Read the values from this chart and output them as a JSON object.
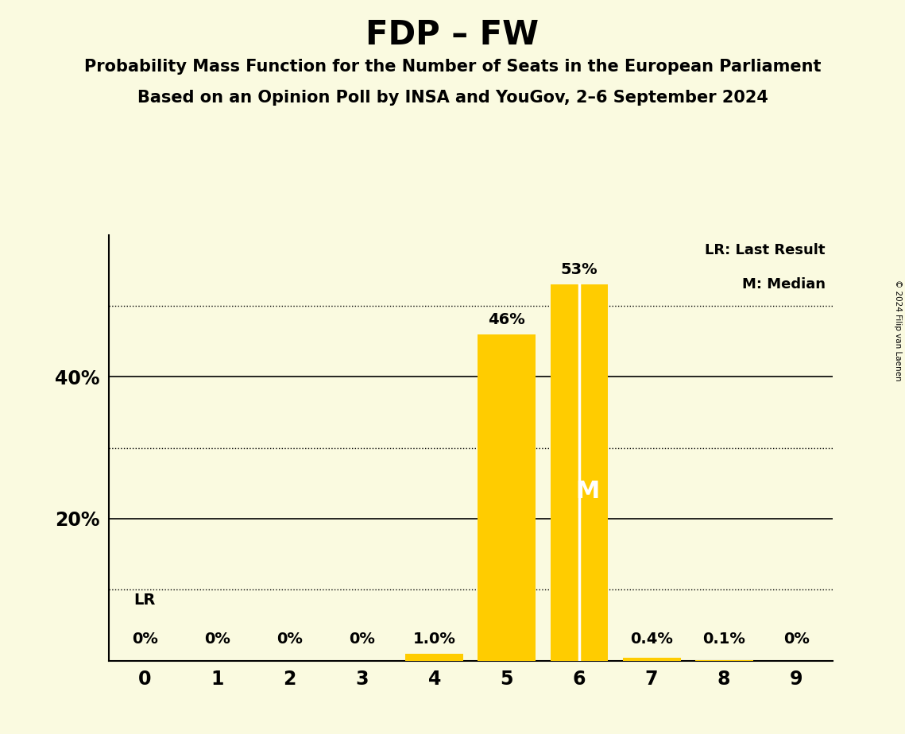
{
  "title": "FDP – FW",
  "subtitle1": "Probability Mass Function for the Number of Seats in the European Parliament",
  "subtitle2": "Based on an Opinion Poll by INSA and YouGov, 2–6 September 2024",
  "copyright": "© 2024 Filip van Laenen",
  "categories": [
    0,
    1,
    2,
    3,
    4,
    5,
    6,
    7,
    8,
    9
  ],
  "values": [
    0.0,
    0.0,
    0.0,
    0.0,
    1.0,
    46.0,
    53.0,
    0.4,
    0.1,
    0.0
  ],
  "bar_color": "#FFCC00",
  "background_color": "#FAFAE0",
  "labels": [
    "0%",
    "0%",
    "0%",
    "0%",
    "1.0%",
    "46%",
    "53%",
    "0.4%",
    "0.1%",
    "0%"
  ],
  "median_seat": 6,
  "lr_seat": 0,
  "ylim": [
    0,
    60
  ],
  "legend_lr": "LR: Last Result",
  "legend_m": "M: Median",
  "dotted_lines": [
    10,
    30,
    50
  ],
  "solid_lines": [
    20,
    40
  ],
  "title_fontsize": 30,
  "subtitle_fontsize": 15,
  "label_fontsize": 14,
  "axis_fontsize": 17,
  "legend_fontsize": 13
}
